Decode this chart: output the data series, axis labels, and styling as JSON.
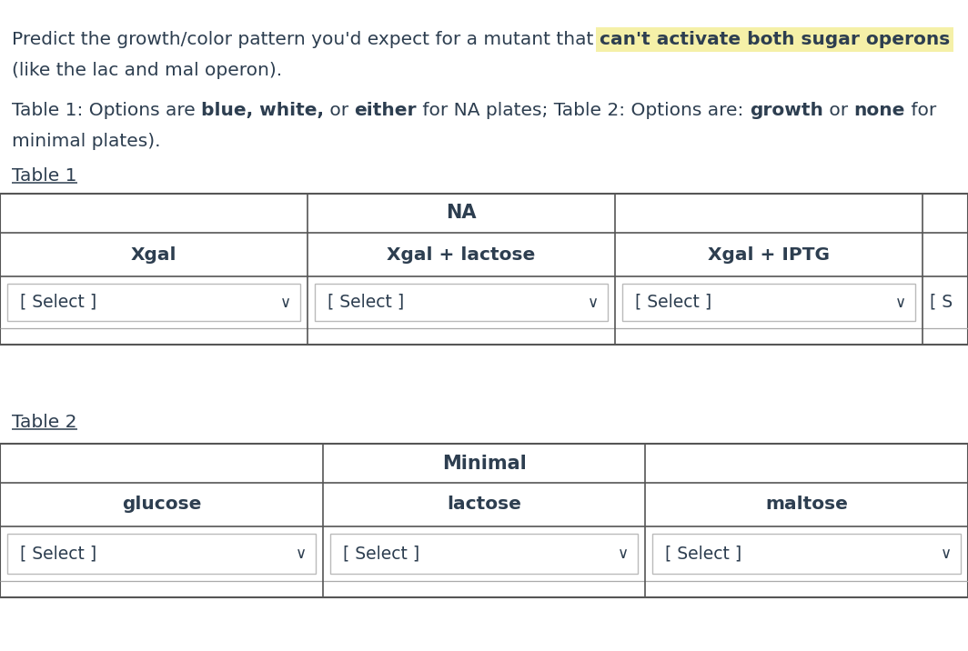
{
  "bg_color": "#ffffff",
  "text_color": "#2d3e50",
  "table_border_outer": "#555555",
  "table_border_inner": "#aaaaaa",
  "dropdown_border": "#bbbbbb",
  "highlight_color": "#f5f0a8",
  "title_normal": "Predict the growth/color pattern you'd expect for a mutant that ",
  "title_bold": "can't activate both sugar operons",
  "title_line2": "(like the lac and mal operon).",
  "sub_segments": [
    [
      "Table 1: Options are ",
      false
    ],
    [
      "blue, white,",
      true
    ],
    [
      " or ",
      false
    ],
    [
      "either",
      true
    ],
    [
      " for NA plates; Table 2: Options are: ",
      false
    ],
    [
      "growth",
      true
    ],
    [
      " or ",
      false
    ],
    [
      "none",
      true
    ],
    [
      " for",
      false
    ]
  ],
  "sub_line2": "minimal plates).",
  "table1_label": "Table 1",
  "table1_header": "NA",
  "table1_cols": [
    "Xgal",
    "Xgal + lactose",
    "Xgal + IPTG"
  ],
  "table2_label": "Table 2",
  "table2_header": "Minimal",
  "table2_cols": [
    "glucose",
    "lactose",
    "maltose"
  ],
  "fontsize_body": 14.5,
  "fontsize_table_header": 15,
  "fontsize_table_col": 14.5,
  "fontsize_select": 13.5,
  "fig_width": 10.64,
  "fig_height": 7.16,
  "dpi": 100
}
